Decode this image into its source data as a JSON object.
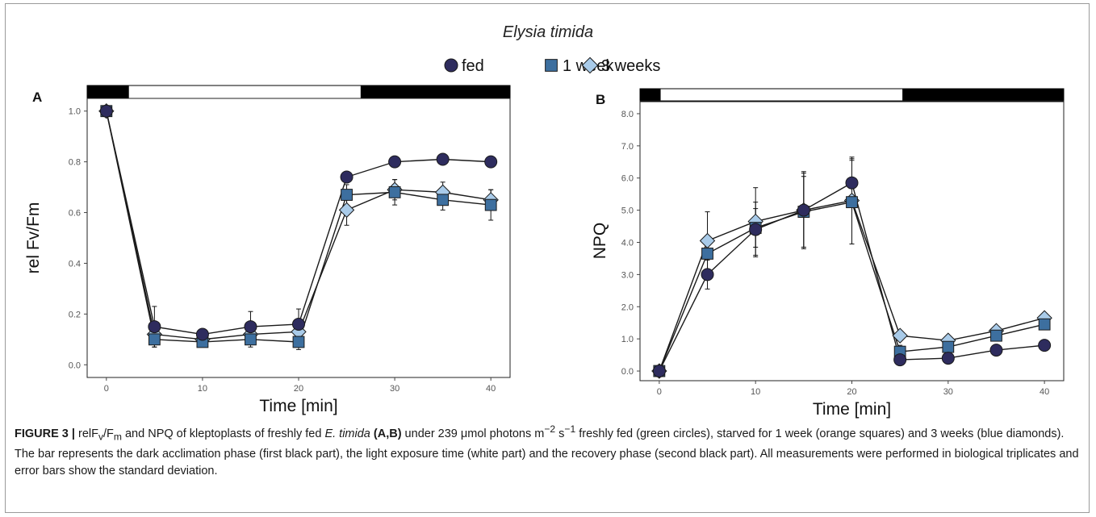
{
  "figure": {
    "title": "Elysia timida",
    "legend": [
      "fed",
      "1 week",
      "3 weeks"
    ]
  },
  "colors": {
    "fed": "#2e2c5e",
    "week1": "#3d6f9f",
    "week3": "#a9cbe9",
    "line": "#1a1a1a"
  },
  "chart_data": [
    {
      "type": "line",
      "panel_label": "A",
      "xlabel": "Time [min]",
      "ylabel": "rel Fv/Fm",
      "x": [
        0,
        5,
        10,
        15,
        20,
        25,
        30,
        35,
        40
      ],
      "xlim": [
        -2,
        42
      ],
      "ylim": [
        -0.05,
        1.05
      ],
      "xticks": [
        "0",
        "10",
        "20",
        "30",
        "40"
      ],
      "yticks": [
        "0.0",
        "0.2",
        "0.4",
        "0.6",
        "0.8",
        "1.0"
      ],
      "grid": false,
      "series": [
        {
          "name": "fed",
          "marker": "circle",
          "values": [
            1.0,
            0.15,
            0.12,
            0.15,
            0.16,
            0.74,
            0.8,
            0.81,
            0.8
          ],
          "err": [
            0,
            0.08,
            0.02,
            0.06,
            0.06,
            0.02,
            0.01,
            0.01,
            0.01
          ]
        },
        {
          "name": "1 week",
          "marker": "square",
          "values": [
            1.0,
            0.1,
            0.09,
            0.1,
            0.09,
            0.67,
            0.68,
            0.65,
            0.63
          ],
          "err": [
            0,
            0.03,
            0.02,
            0.03,
            0.03,
            0.04,
            0.05,
            0.04,
            0.06
          ]
        },
        {
          "name": "3 weeks",
          "marker": "diamond",
          "values": [
            1.0,
            0.12,
            0.1,
            0.12,
            0.13,
            0.61,
            0.69,
            0.68,
            0.65
          ],
          "err": [
            0,
            0.03,
            0.02,
            0.03,
            0.03,
            0.06,
            0.04,
            0.04,
            0.04
          ]
        }
      ],
      "phase_bar": [
        {
          "phase": "dark",
          "from": -2,
          "to": 2.3
        },
        {
          "phase": "light",
          "from": 2.3,
          "to": 26.5
        },
        {
          "phase": "dark",
          "from": 26.5,
          "to": 42
        }
      ]
    },
    {
      "type": "line",
      "panel_label": "B",
      "xlabel": "Time [min]",
      "ylabel": "NPQ",
      "x": [
        0,
        5,
        10,
        15,
        20,
        25,
        30,
        35,
        40
      ],
      "xlim": [
        -2,
        42
      ],
      "ylim": [
        -0.3,
        8.4
      ],
      "xticks": [
        "0",
        "10",
        "20",
        "30",
        "40"
      ],
      "yticks": [
        "0.0",
        "1.0",
        "2.0",
        "3.0",
        "4.0",
        "5.0",
        "6.0",
        "7.0",
        "8.0"
      ],
      "grid": false,
      "series": [
        {
          "name": "fed",
          "marker": "circle",
          "values": [
            0.0,
            3.0,
            4.4,
            5.0,
            5.85,
            0.35,
            0.4,
            0.65,
            0.8
          ],
          "err": [
            0,
            0.45,
            0.85,
            1.15,
            0.75,
            0.08,
            0.08,
            0.1,
            0.1
          ]
        },
        {
          "name": "1 week",
          "marker": "square",
          "values": [
            0.0,
            3.65,
            4.45,
            4.95,
            5.25,
            0.6,
            0.75,
            1.1,
            1.45
          ],
          "err": [
            0,
            0.5,
            0.6,
            1.1,
            1.3,
            0.2,
            0.15,
            0.15,
            0.15
          ]
        },
        {
          "name": "3 weeks",
          "marker": "diamond",
          "values": [
            0.0,
            4.05,
            4.65,
            5.0,
            5.3,
            1.1,
            0.95,
            1.25,
            1.65
          ],
          "err": [
            0,
            0.9,
            1.05,
            1.2,
            1.35,
            0.15,
            0.1,
            0.1,
            0.1
          ]
        }
      ],
      "phase_bar": [
        {
          "phase": "dark",
          "from": -2,
          "to": 0.1
        },
        {
          "phase": "light",
          "from": 0.1,
          "to": 25.3
        },
        {
          "phase": "dark",
          "from": 25.3,
          "to": 42
        }
      ]
    }
  ],
  "caption": {
    "label": "FIGURE 3 |",
    "p1": " relF",
    "sub_v": "v",
    "p2": "/F",
    "sub_m": "m",
    "p3": " and NPQ of kleptoplasts of freshly fed ",
    "species": "E. timida",
    "p4": " ",
    "panels": "(A,B)",
    "p5": " under 239 μmol photons m",
    "sup1": "−2",
    "p6": " s",
    "sup2": "−1",
    "p7": " freshly fed (green circles), starved for 1 week (orange squares) and 3 weeks (blue diamonds). The bar represents the dark acclimation phase (first black part), the light exposure time (white part) and the recovery phase (second black part). All measurements were performed in biological triplicates and error bars show the standard deviation."
  }
}
